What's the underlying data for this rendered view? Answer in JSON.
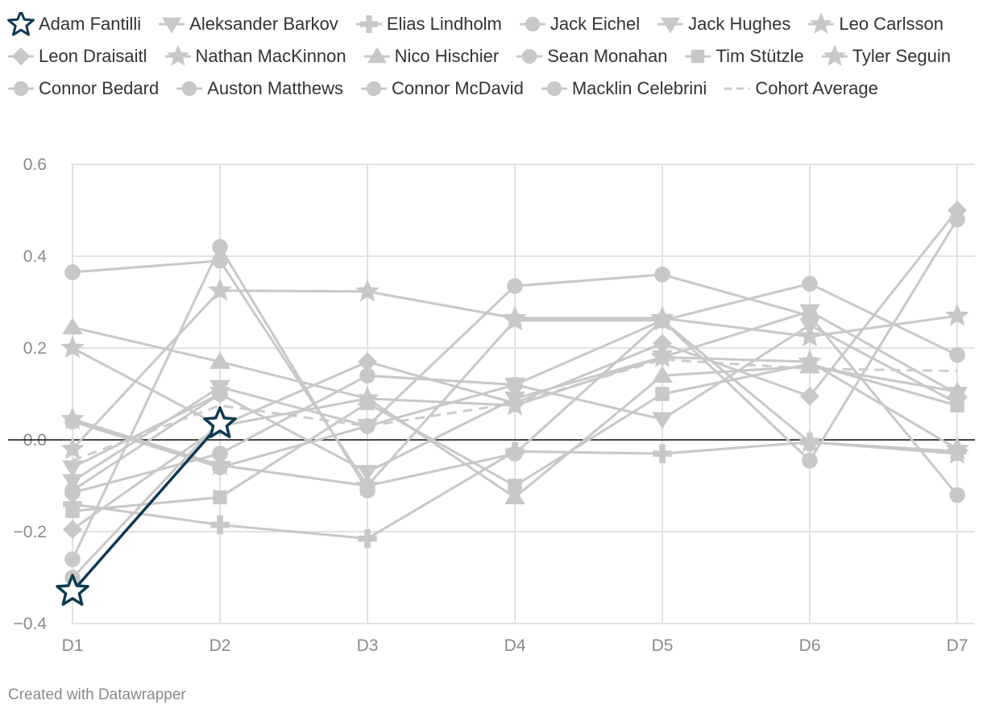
{
  "chart_data": {
    "type": "line",
    "categories": [
      "D1",
      "D2",
      "D3",
      "D4",
      "D5",
      "D6",
      "D7"
    ],
    "ylim": [
      -0.4,
      0.6
    ],
    "yticks": [
      -0.4,
      -0.2,
      0.0,
      0.2,
      0.4,
      0.6
    ],
    "ytick_labels": [
      "−0.4",
      "−0.2",
      "0.0",
      "0.2",
      "0.4",
      "0.6"
    ],
    "grid": true,
    "legend_position": "top",
    "highlight_color": "#0e3a52",
    "muted_color": "#c8c8c8",
    "average_color": "#cccccc",
    "series": [
      {
        "name": "Adam Fantilli",
        "marker": "star",
        "highlight": true,
        "values": [
          -0.33,
          0.035,
          null,
          null,
          null,
          null,
          null
        ]
      },
      {
        "name": "Aleksander Barkov",
        "marker": "triangle-down",
        "values": [
          -0.06,
          0.1,
          -0.07,
          0.09,
          0.18,
          0.28,
          0.1
        ]
      },
      {
        "name": "Elias Lindholm",
        "marker": "plus",
        "values": [
          -0.14,
          -0.185,
          -0.215,
          -0.025,
          -0.03,
          -0.005,
          -0.025
        ]
      },
      {
        "name": "Jack Eichel",
        "marker": "circle",
        "values": [
          0.365,
          0.39,
          -0.1,
          -0.03,
          0.26,
          -0.045,
          0.48
        ]
      },
      {
        "name": "Jack Hughes",
        "marker": "triangle-down",
        "values": [
          -0.09,
          0.115,
          0.03,
          0.12,
          0.045,
          0.25,
          0.08
        ]
      },
      {
        "name": "Leo Carlsson",
        "marker": "star",
        "values": [
          -0.02,
          0.325,
          0.323,
          0.265,
          0.265,
          0.225,
          0.27
        ]
      },
      {
        "name": "Leon Draisaitl",
        "marker": "diamond",
        "values": [
          -0.195,
          0.03,
          0.17,
          0.08,
          0.21,
          0.095,
          0.5
        ]
      },
      {
        "name": "Nathan MacKinnon",
        "marker": "star",
        "values": [
          0.2,
          0.03,
          0.09,
          0.075,
          0.18,
          0.17,
          -0.02
        ]
      },
      {
        "name": "Nico Hischier",
        "marker": "triangle",
        "values": [
          0.245,
          0.17,
          0.09,
          -0.125,
          0.14,
          0.16,
          0.105
        ]
      },
      {
        "name": "Sean Monahan",
        "marker": "circle",
        "values": [
          -0.115,
          -0.03,
          0.14,
          0.12,
          0.26,
          0.34,
          0.185
        ]
      },
      {
        "name": "Tim Stützle",
        "marker": "square",
        "values": [
          -0.155,
          -0.125,
          0.08,
          -0.1,
          0.1,
          0.165,
          0.075
        ]
      },
      {
        "name": "Tyler Seguin",
        "marker": "star",
        "values": [
          0.045,
          -0.055,
          -0.1,
          0.26,
          0.26,
          -0.005,
          -0.03
        ]
      },
      {
        "name": "Connor Bedard",
        "marker": "circle",
        "values": [
          -0.26,
          0.42,
          -0.11,
          null,
          null,
          null,
          null
        ]
      },
      {
        "name": "Auston Matthews",
        "marker": "circle",
        "values": [
          0.04,
          -0.06,
          0.03,
          0.335,
          0.36,
          0.27,
          -0.12
        ]
      },
      {
        "name": "Connor McDavid",
        "marker": "circle",
        "values": [
          -0.11,
          0.1,
          null,
          null,
          null,
          null,
          null
        ]
      },
      {
        "name": "Macklin Celebrini",
        "marker": "circle",
        "values": [
          -0.3,
          0.04,
          null,
          null,
          null,
          null,
          null
        ]
      },
      {
        "name": "Cohort Average",
        "marker": "dash",
        "average": true,
        "values": [
          -0.045,
          0.075,
          0.03,
          0.08,
          0.175,
          0.155,
          0.15
        ]
      }
    ]
  },
  "credit": "Created with Datawrapper"
}
